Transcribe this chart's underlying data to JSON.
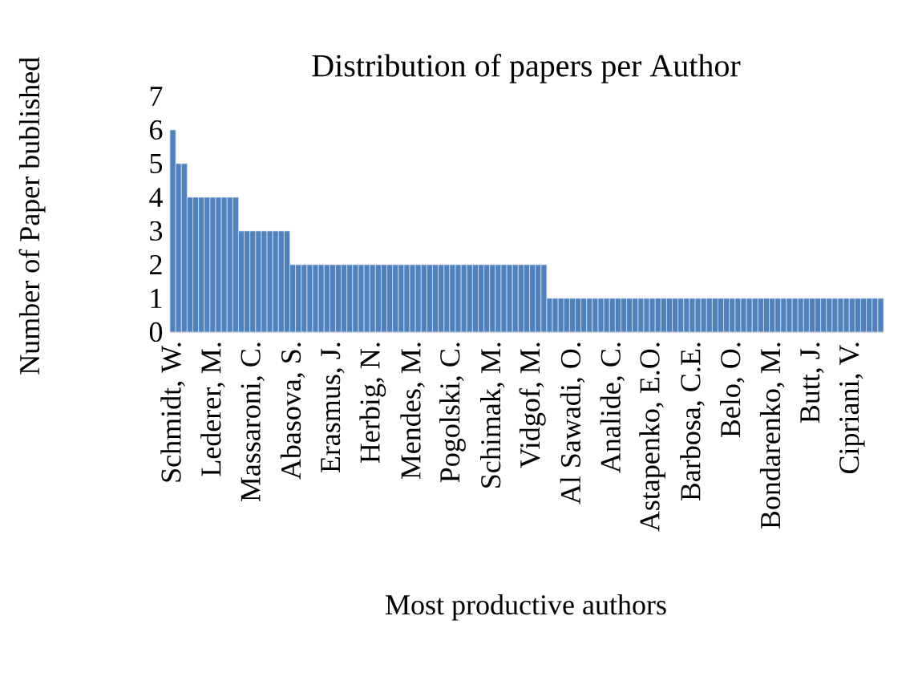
{
  "chart_data": {
    "type": "bar",
    "title": "Distribution of papers per Author",
    "xlabel": "Most productive authors",
    "ylabel": "Number of Paper bublished",
    "categories": [
      "Schmidt, W.",
      null,
      null,
      null,
      null,
      null,
      null,
      "Lederer, M.",
      null,
      null,
      null,
      null,
      null,
      null,
      "Massaroni, C.",
      null,
      null,
      null,
      null,
      null,
      null,
      "Abasova, S.",
      null,
      null,
      null,
      null,
      null,
      null,
      "Erasmus, J.",
      null,
      null,
      null,
      null,
      null,
      null,
      "Herbig, N.",
      null,
      null,
      null,
      null,
      null,
      null,
      "Mendes, M.",
      null,
      null,
      null,
      null,
      null,
      null,
      "Pogolski, C.",
      null,
      null,
      null,
      null,
      null,
      null,
      "Schimak, M.",
      null,
      null,
      null,
      null,
      null,
      null,
      "Vidgof, M.",
      null,
      null,
      null,
      null,
      null,
      null,
      "Al Sawadi, O.",
      null,
      null,
      null,
      null,
      null,
      null,
      "Analide, C.",
      null,
      null,
      null,
      null,
      null,
      null,
      "Astapenko, E.O.",
      null,
      null,
      null,
      null,
      null,
      null,
      "Barbosa, C.E.",
      null,
      null,
      null,
      null,
      null,
      null,
      "Belo, O.",
      null,
      null,
      null,
      null,
      null,
      null,
      "Bondarenko, M.",
      null,
      null,
      null,
      null,
      null,
      null,
      "Butt, J.",
      null,
      null,
      null,
      null,
      null,
      null,
      "Cipriani, V.",
      null,
      null,
      null,
      null,
      null
    ],
    "values": [
      6,
      5,
      5,
      4,
      4,
      4,
      4,
      4,
      4,
      4,
      4,
      4,
      3,
      3,
      3,
      3,
      3,
      3,
      3,
      3,
      3,
      2,
      2,
      2,
      2,
      2,
      2,
      2,
      2,
      2,
      2,
      2,
      2,
      2,
      2,
      2,
      2,
      2,
      2,
      2,
      2,
      2,
      2,
      2,
      2,
      2,
      2,
      2,
      2,
      2,
      2,
      2,
      2,
      2,
      2,
      2,
      2,
      2,
      2,
      2,
      2,
      2,
      2,
      2,
      2,
      2,
      1,
      1,
      1,
      1,
      1,
      1,
      1,
      1,
      1,
      1,
      1,
      1,
      1,
      1,
      1,
      1,
      1,
      1,
      1,
      1,
      1,
      1,
      1,
      1,
      1,
      1,
      1,
      1,
      1,
      1,
      1,
      1,
      1,
      1,
      1,
      1,
      1,
      1,
      1,
      1,
      1,
      1,
      1,
      1,
      1,
      1,
      1,
      1,
      1,
      1,
      1,
      1,
      1,
      1,
      1,
      1,
      1,
      1,
      1
    ],
    "color": "#4f81bd",
    "ylim": [
      0,
      7
    ],
    "yticks": [
      0,
      1,
      2,
      3,
      4,
      5,
      6,
      7
    ]
  }
}
